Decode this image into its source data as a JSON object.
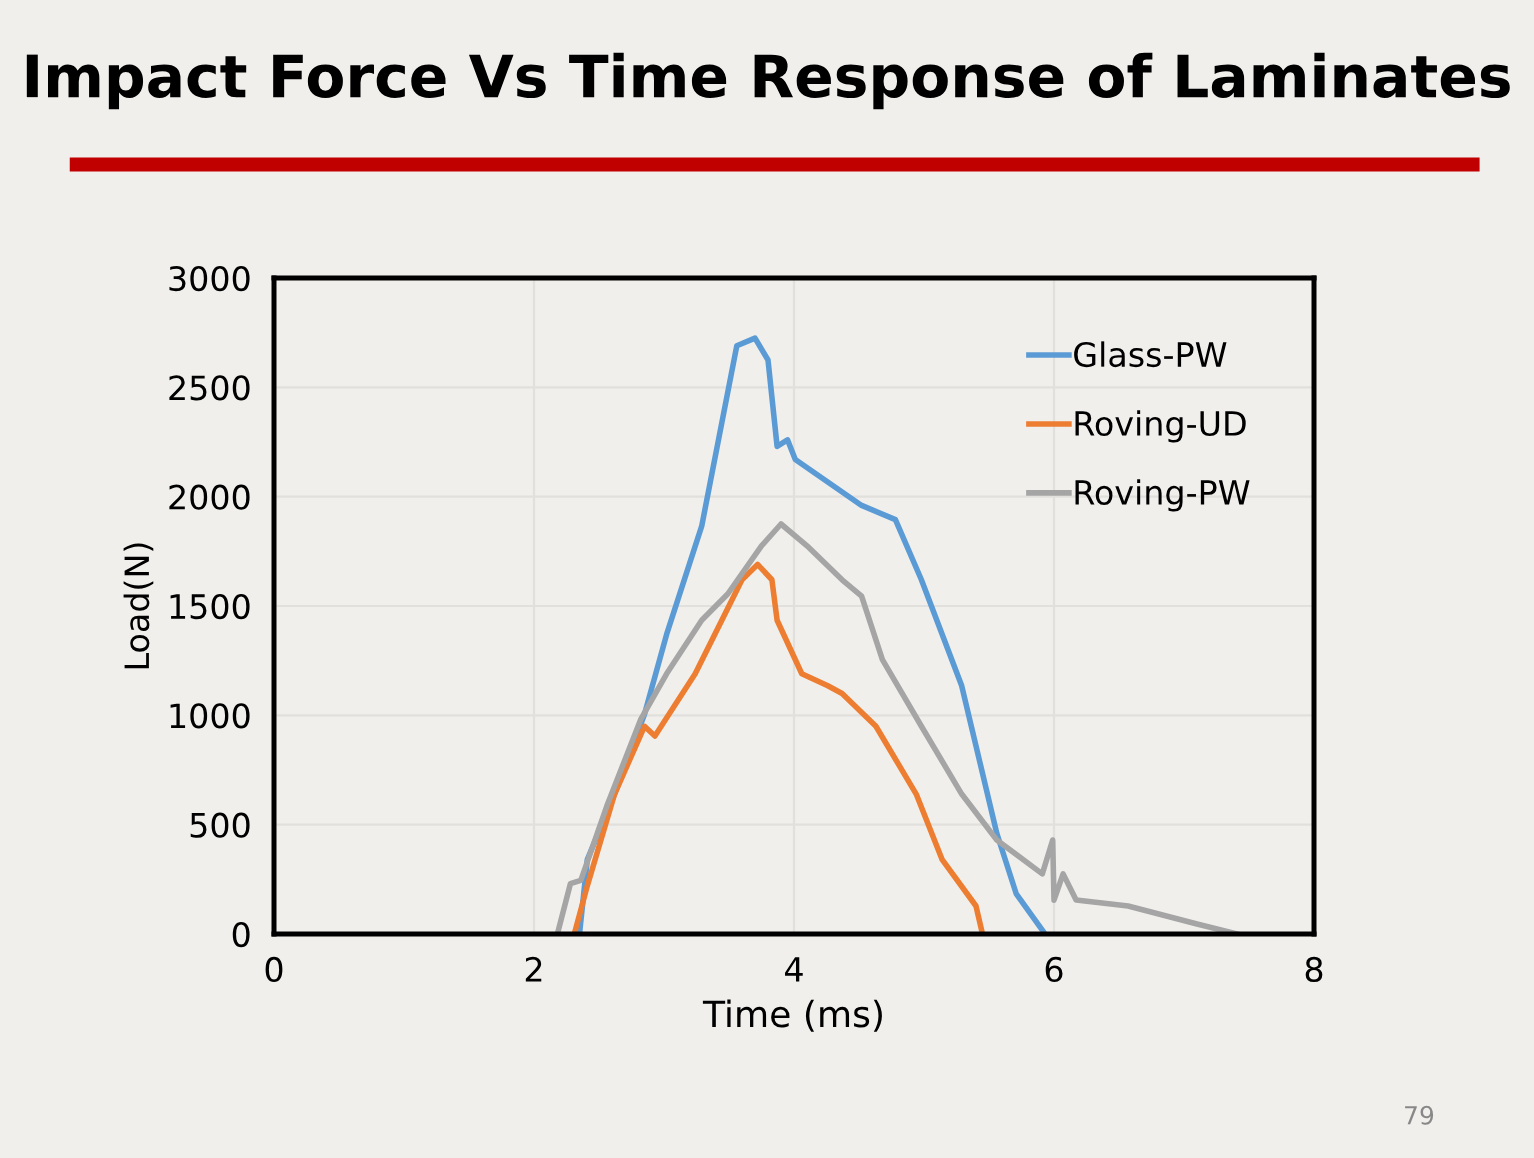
{
  "chart_data": {
    "type": "line",
    "title": "Impact Force Vs Time Response of Laminates",
    "xlabel": "Time (ms)",
    "ylabel": "Load(N)",
    "annotations": [
      "79"
    ],
    "xlim": [
      0,
      8
    ],
    "xticks": [
      0,
      2,
      4,
      6,
      8
    ],
    "ylim": [
      0,
      3000
    ],
    "yticks": [
      0,
      500,
      1000,
      1500,
      2000,
      2500,
      3000
    ],
    "grid": true,
    "legend": "top right",
    "marker": "none",
    "line_style": "solid",
    "series": [
      {
        "name": "Glass-PW",
        "color": "#5b9bd5",
        "x": [
          2.35,
          2.41,
          2.62,
          2.85,
          3.02,
          3.29,
          3.56,
          3.7,
          3.8,
          3.87,
          3.95,
          4.01,
          4.52,
          4.78,
          4.98,
          5.29,
          5.56,
          5.71,
          5.91,
          5.93
        ],
        "values": [
          0,
          340,
          640,
          1005,
          1370,
          1865,
          2690,
          2725,
          2625,
          2230,
          2260,
          2170,
          1960,
          1895,
          1620,
          1135,
          460,
          183,
          18,
          0
        ]
      },
      {
        "name": "Roving-UD",
        "color": "#ed7d31",
        "x": [
          2.31,
          2.41,
          2.62,
          2.85,
          2.93,
          3.24,
          3.6,
          3.72,
          3.83,
          3.87,
          4.06,
          4.26,
          4.37,
          4.63,
          4.94,
          5.14,
          5.4,
          5.45
        ],
        "values": [
          0,
          220,
          640,
          950,
          905,
          1190,
          1620,
          1690,
          1620,
          1435,
          1190,
          1135,
          1100,
          950,
          640,
          340,
          128,
          0
        ]
      },
      {
        "name": "Roving-PW",
        "color": "#a5a5a5",
        "x": [
          2.18,
          2.28,
          2.36,
          2.56,
          2.82,
          3.02,
          3.29,
          3.49,
          3.75,
          3.9,
          4.1,
          4.37,
          4.52,
          4.68,
          4.98,
          5.29,
          5.56,
          5.91,
          5.99,
          6.0,
          6.07,
          6.17,
          6.57,
          7.1,
          7.41
        ],
        "values": [
          0,
          230,
          245,
          585,
          980,
          1190,
          1435,
          1555,
          1775,
          1875,
          1775,
          1620,
          1545,
          1255,
          950,
          640,
          430,
          275,
          430,
          155,
          275,
          155,
          128,
          46,
          0
        ]
      }
    ]
  }
}
